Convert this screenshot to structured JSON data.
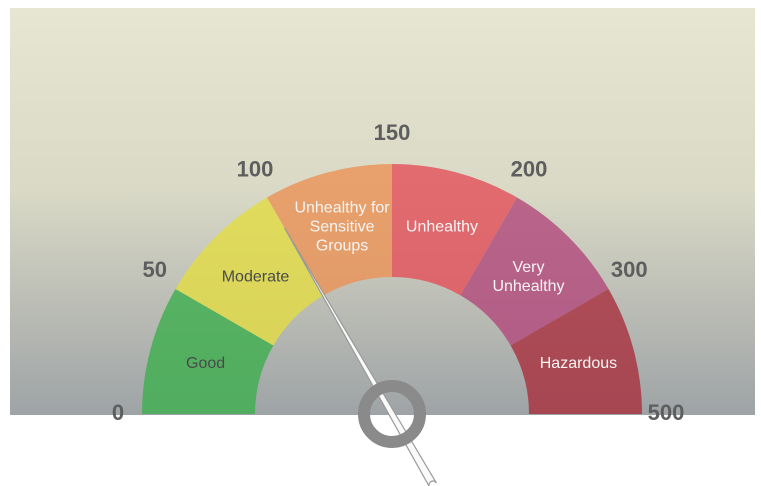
{
  "chart_data": {
    "type": "gauge",
    "ticks": [
      0,
      50,
      100,
      150,
      200,
      300,
      500
    ],
    "bands": [
      {
        "label": "Good",
        "color": "#3fae4f"
      },
      {
        "label": "Moderate",
        "color": "#e2dc45"
      },
      {
        "label": "Unhealthy for\nSensitive\nGroups",
        "color": "#ea9458"
      },
      {
        "label": "Unhealthy",
        "color": "#e2525a"
      },
      {
        "label": "Very\nUnhealthy",
        "color": "#b24a7c"
      },
      {
        "label": "Hazardous",
        "color": "#a8323f"
      }
    ],
    "needle": 100
  }
}
